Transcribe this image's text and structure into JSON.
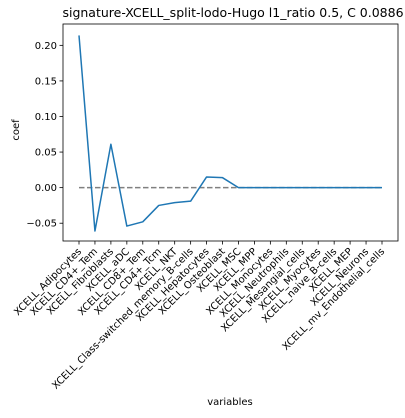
{
  "chart_data": {
    "type": "line",
    "title": "signature-XCELL_split-lodo-Hugo l1_ratio 0.5, C 0.0886",
    "xlabel": "variables",
    "ylabel": "coef",
    "ylim": [
      -0.075,
      0.23
    ],
    "yticks": [
      -0.05,
      0.0,
      0.05,
      0.1,
      0.15,
      0.2
    ],
    "ytick_labels": [
      "−0.05",
      "0.00",
      "0.05",
      "0.10",
      "0.15",
      "0.20"
    ],
    "grid": false,
    "categories": [
      "XCELL_Adipocytes",
      "XCELL_CD4+_Tem",
      "XCELL_Fibroblasts",
      "XCELL_aDC",
      "XCELL_CD8+_Tem",
      "XCELL_CD4+_Tcm",
      "XCELL_NKT",
      "XCELL_Class-switched_memory_B-cells",
      "XCELL_Hepatocytes",
      "XCELL_Osteoblast",
      "XCELL_MSC",
      "XCELL_MPP",
      "XCELL_Monocytes",
      "XCELL_Neutrophils",
      "XCELL_Mesangial_cells",
      "XCELL_Myocytes",
      "XCELL_naive_B-cells",
      "XCELL_MEP",
      "XCELL_Neurons",
      "XCELL_mv_Endothelial_cells"
    ],
    "series": [
      {
        "color": "#1f77b4",
        "values": [
          0.214,
          -0.061,
          0.061,
          -0.054,
          -0.048,
          -0.025,
          -0.021,
          -0.019,
          0.015,
          0.014,
          0.0,
          0.0,
          0.0,
          0.0,
          0.0,
          0.0,
          0.0,
          0.0,
          0.0,
          0.0
        ]
      }
    ],
    "reference_line": {
      "y": 0.0,
      "style": "dashed",
      "color": "#808080"
    }
  }
}
